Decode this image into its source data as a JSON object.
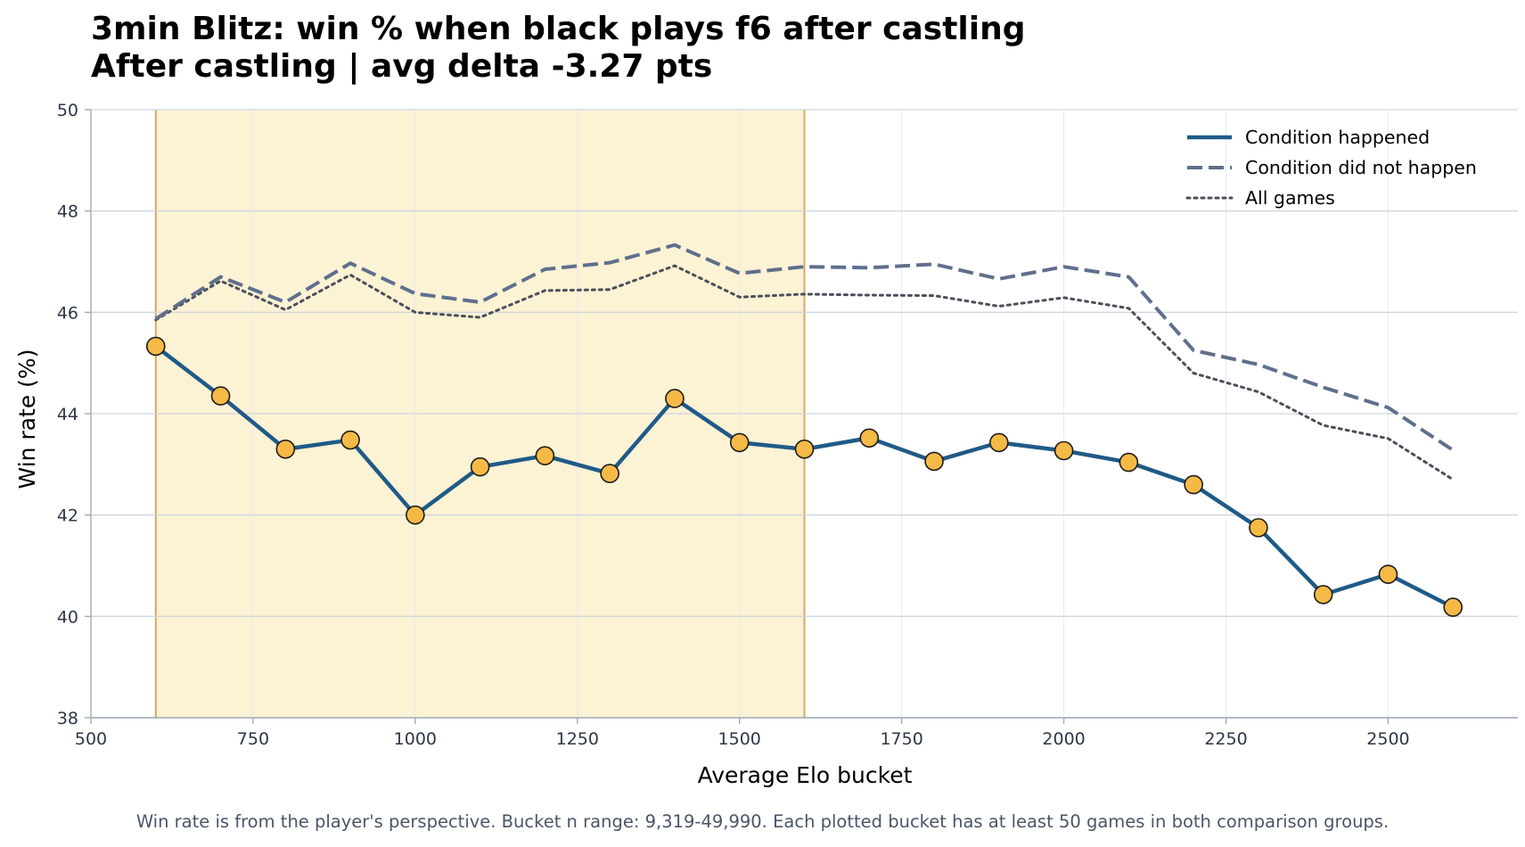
{
  "title": {
    "line1": "3min Blitz: win % when black plays f6 after castling",
    "line2": "After castling | avg delta -3.27 pts"
  },
  "footnote": "Win rate is from the player's perspective. Bucket n range: 9,319-49,990. Each plotted bucket has at least 50 games in both comparison groups.",
  "colors": {
    "condition": "#1f5a87",
    "not_condition": "#5f6f8c",
    "all_games": "#4a4f59",
    "marker_fill": "#f5b945",
    "marker_edge": "#1c1c1c",
    "highlight_fill": "#fcf2d4",
    "highlight_edge": "#d4a868",
    "grid": "#cfd6df",
    "axis": "#a0aab8"
  },
  "chart_data": {
    "type": "line",
    "title": "3min Blitz: win % when black plays f6 after castling",
    "subtitle": "After castling | avg delta -3.27 pts",
    "xlabel": "Average Elo bucket",
    "ylabel": "Win rate (%)",
    "xlim": [
      500,
      2700
    ],
    "ylim": [
      38,
      50
    ],
    "xticks": [
      500,
      750,
      1000,
      1250,
      1500,
      1750,
      2000,
      2250,
      2500
    ],
    "yticks": [
      38,
      40,
      42,
      44,
      46,
      48,
      50
    ],
    "grid": true,
    "legend_position": "top-right",
    "highlight_range": [
      600,
      1600
    ],
    "x": [
      600,
      700,
      800,
      900,
      1000,
      1100,
      1200,
      1300,
      1400,
      1500,
      1600,
      1700,
      1800,
      1900,
      2000,
      2100,
      2200,
      2300,
      2400,
      2500,
      2600
    ],
    "series": [
      {
        "name": "Condition happened",
        "style": "solid",
        "markers": true,
        "values": [
          45.33,
          44.35,
          43.3,
          43.48,
          42.0,
          42.95,
          43.17,
          42.82,
          44.3,
          43.43,
          43.3,
          43.52,
          43.06,
          43.43,
          43.27,
          43.04,
          42.6,
          41.75,
          40.43,
          40.83,
          40.18
        ]
      },
      {
        "name": "Condition did not happen",
        "style": "dashed",
        "markers": false,
        "values": [
          45.87,
          46.7,
          46.2,
          46.97,
          46.37,
          46.2,
          46.85,
          46.98,
          47.33,
          46.77,
          46.9,
          46.88,
          46.95,
          46.66,
          46.9,
          46.7,
          45.25,
          44.97,
          44.52,
          44.12,
          43.28
        ]
      },
      {
        "name": "All games",
        "style": "dotted",
        "markers": false,
        "values": [
          45.85,
          46.62,
          46.05,
          46.74,
          46.0,
          45.9,
          46.43,
          46.45,
          46.92,
          46.3,
          46.36,
          46.34,
          46.33,
          46.12,
          46.29,
          46.08,
          44.8,
          44.43,
          43.77,
          43.51,
          42.7
        ]
      }
    ]
  }
}
